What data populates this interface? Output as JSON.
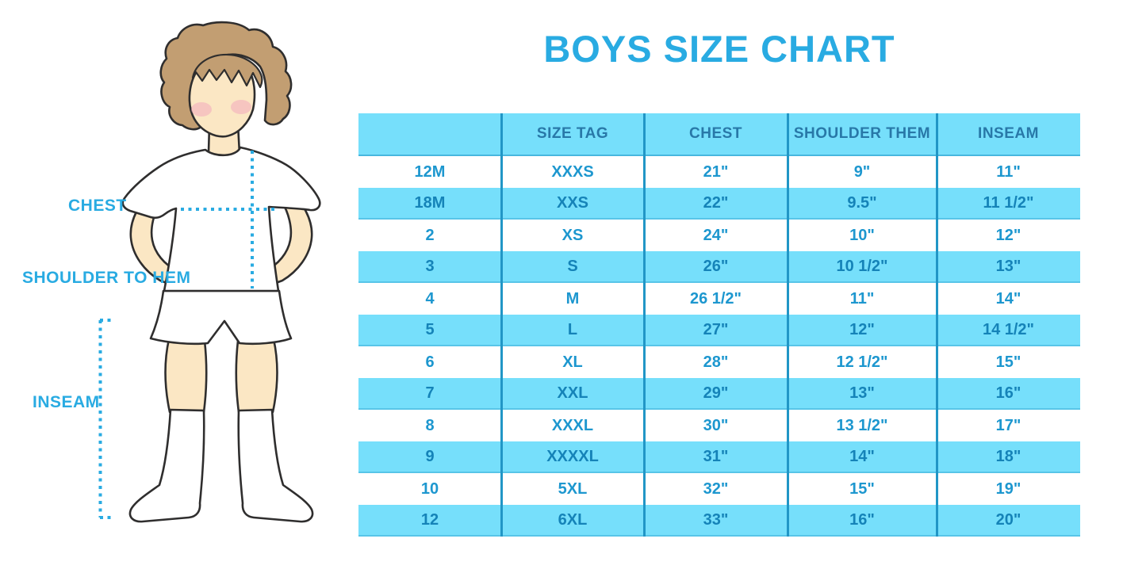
{
  "title": "BOYS SIZE CHART",
  "colors": {
    "accent": "#29ABE2",
    "stripe": "#76DFFB",
    "header_text": "#2878A8",
    "cell_text": "#1D97CF",
    "cell_text_alt": "#1583B8",
    "divider": "#2196C6"
  },
  "figure": {
    "labels": {
      "chest": "CHEST",
      "shoulder_to_hem": "SHOULDER TO HEM",
      "inseam": "INSEAM"
    },
    "icons": [
      "boy-illustration",
      "chest-measure-line",
      "shoulder-to-hem-measure-line",
      "inseam-measure-line"
    ]
  },
  "chart_data": {
    "type": "table",
    "title": "BOYS SIZE CHART",
    "columns": [
      "",
      "SIZE TAG",
      "CHEST",
      "SHOULDER THEM",
      "INSEAM"
    ],
    "rows": [
      [
        "12M",
        "XXXS",
        "21\"",
        "9\"",
        "11\""
      ],
      [
        "18M",
        "XXS",
        "22\"",
        "9.5\"",
        "11 1/2\""
      ],
      [
        "2",
        "XS",
        "24\"",
        "10\"",
        "12\""
      ],
      [
        "3",
        "S",
        "26\"",
        "10 1/2\"",
        "13\""
      ],
      [
        "4",
        "M",
        "26 1/2\"",
        "11\"",
        "14\""
      ],
      [
        "5",
        "L",
        "27\"",
        "12\"",
        "14 1/2\""
      ],
      [
        "6",
        "XL",
        "28\"",
        "12 1/2\"",
        "15\""
      ],
      [
        "7",
        "XXL",
        "29\"",
        "13\"",
        "16\""
      ],
      [
        "8",
        "XXXL",
        "30\"",
        "13 1/2\"",
        "17\""
      ],
      [
        "9",
        "XXXXL",
        "31\"",
        "14\"",
        "18\""
      ],
      [
        "10",
        "5XL",
        "32\"",
        "15\"",
        "19\""
      ],
      [
        "12",
        "6XL",
        "33\"",
        "16\"",
        "20\""
      ]
    ],
    "layout": {
      "header_background": "#76DFFB",
      "row_striping": [
        "white",
        "blue"
      ],
      "grid": "vertical-dividers-only"
    }
  }
}
